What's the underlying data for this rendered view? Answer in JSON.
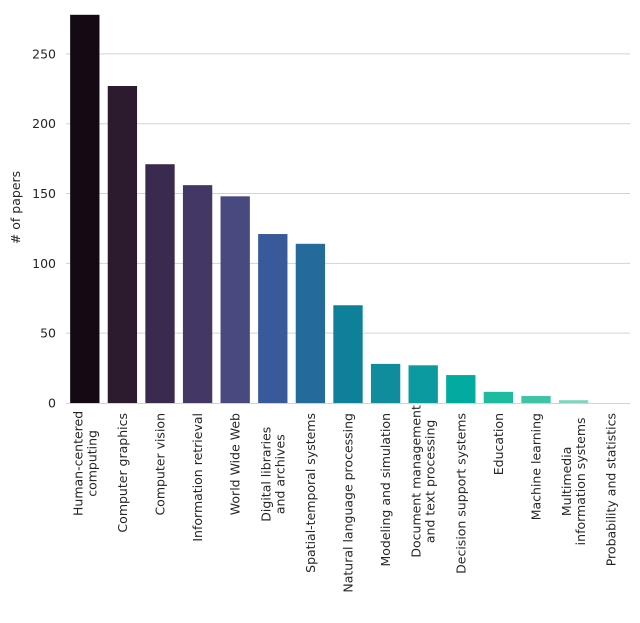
{
  "chart_data": {
    "type": "bar",
    "ylabel": "# of papers",
    "xlabel": "",
    "ylim": [
      0,
      280
    ],
    "yticks": [
      0,
      50,
      100,
      150,
      200,
      250
    ],
    "grid": "horizontal",
    "categories": [
      [
        "Human-centered",
        "computing"
      ],
      [
        "Computer graphics"
      ],
      [
        "Computer vision"
      ],
      [
        "Information retrieval"
      ],
      [
        "World Wide Web"
      ],
      [
        "Digital libraries",
        "and archives"
      ],
      [
        "Spatial-temporal systems"
      ],
      [
        "Natural language processing"
      ],
      [
        "Modeling and simulation"
      ],
      [
        "Document management",
        "and text processing"
      ],
      [
        "Decision support systems"
      ],
      [
        "Education"
      ],
      [
        "Machine learning"
      ],
      [
        "Multimedia",
        "information systems"
      ],
      [
        "Probability and statistics"
      ]
    ],
    "values": [
      278,
      227,
      171,
      156,
      148,
      121,
      114,
      70,
      28,
      27,
      20,
      8,
      5,
      2,
      0
    ],
    "colors": [
      "#140a14",
      "#2c1a2e",
      "#3b2a4f",
      "#433865",
      "#47497f",
      "#38599a",
      "#246b9c",
      "#0e8099",
      "#0f8d9f",
      "#0a9a9f",
      "#03aaa0",
      "#1fbba1",
      "#3fc4a6",
      "#7ed6bd",
      "#c3ead8"
    ]
  }
}
